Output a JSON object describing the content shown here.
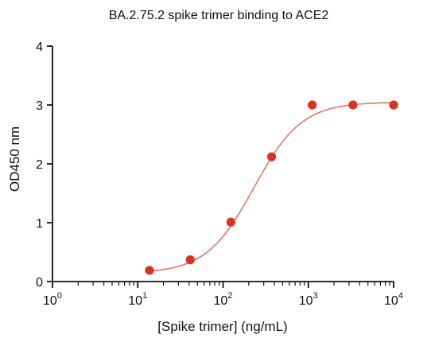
{
  "chart_data": {
    "type": "scatter",
    "title": "BA.2.75.2 spike trimer binding to ACE2",
    "xlabel": "[Spike trimer]  (ng/mL)",
    "ylabel": "OD450 nm",
    "x_scale": "log",
    "xlim": [
      1,
      10000
    ],
    "ylim": [
      0,
      4
    ],
    "x_ticks": [
      {
        "base": "10",
        "exp": "0",
        "value": 1
      },
      {
        "base": "10",
        "exp": "1",
        "value": 10
      },
      {
        "base": "10",
        "exp": "2",
        "value": 100
      },
      {
        "base": "10",
        "exp": "3",
        "value": 1000
      },
      {
        "base": "10",
        "exp": "4",
        "value": 10000
      }
    ],
    "y_ticks": [
      {
        "label": "0",
        "value": 0
      },
      {
        "label": "1",
        "value": 1
      },
      {
        "label": "2",
        "value": 2
      },
      {
        "label": "3",
        "value": 3
      },
      {
        "label": "4",
        "value": 4
      }
    ],
    "grid": false,
    "legend": "none",
    "marker_color": "#d9341f",
    "line_color": "#e8735f",
    "series": [
      {
        "x": [
          13.7,
          41.2,
          123.5,
          370.4,
          1111.1,
          3333.3,
          10000
        ],
        "y": [
          0.19,
          0.37,
          1.01,
          2.12,
          3.0,
          3.0,
          3.0
        ]
      }
    ],
    "fit_curve": {
      "model": "4PL",
      "bottom": 0.14,
      "top": 3.05,
      "ec50": 230,
      "hill": 1.55
    }
  }
}
